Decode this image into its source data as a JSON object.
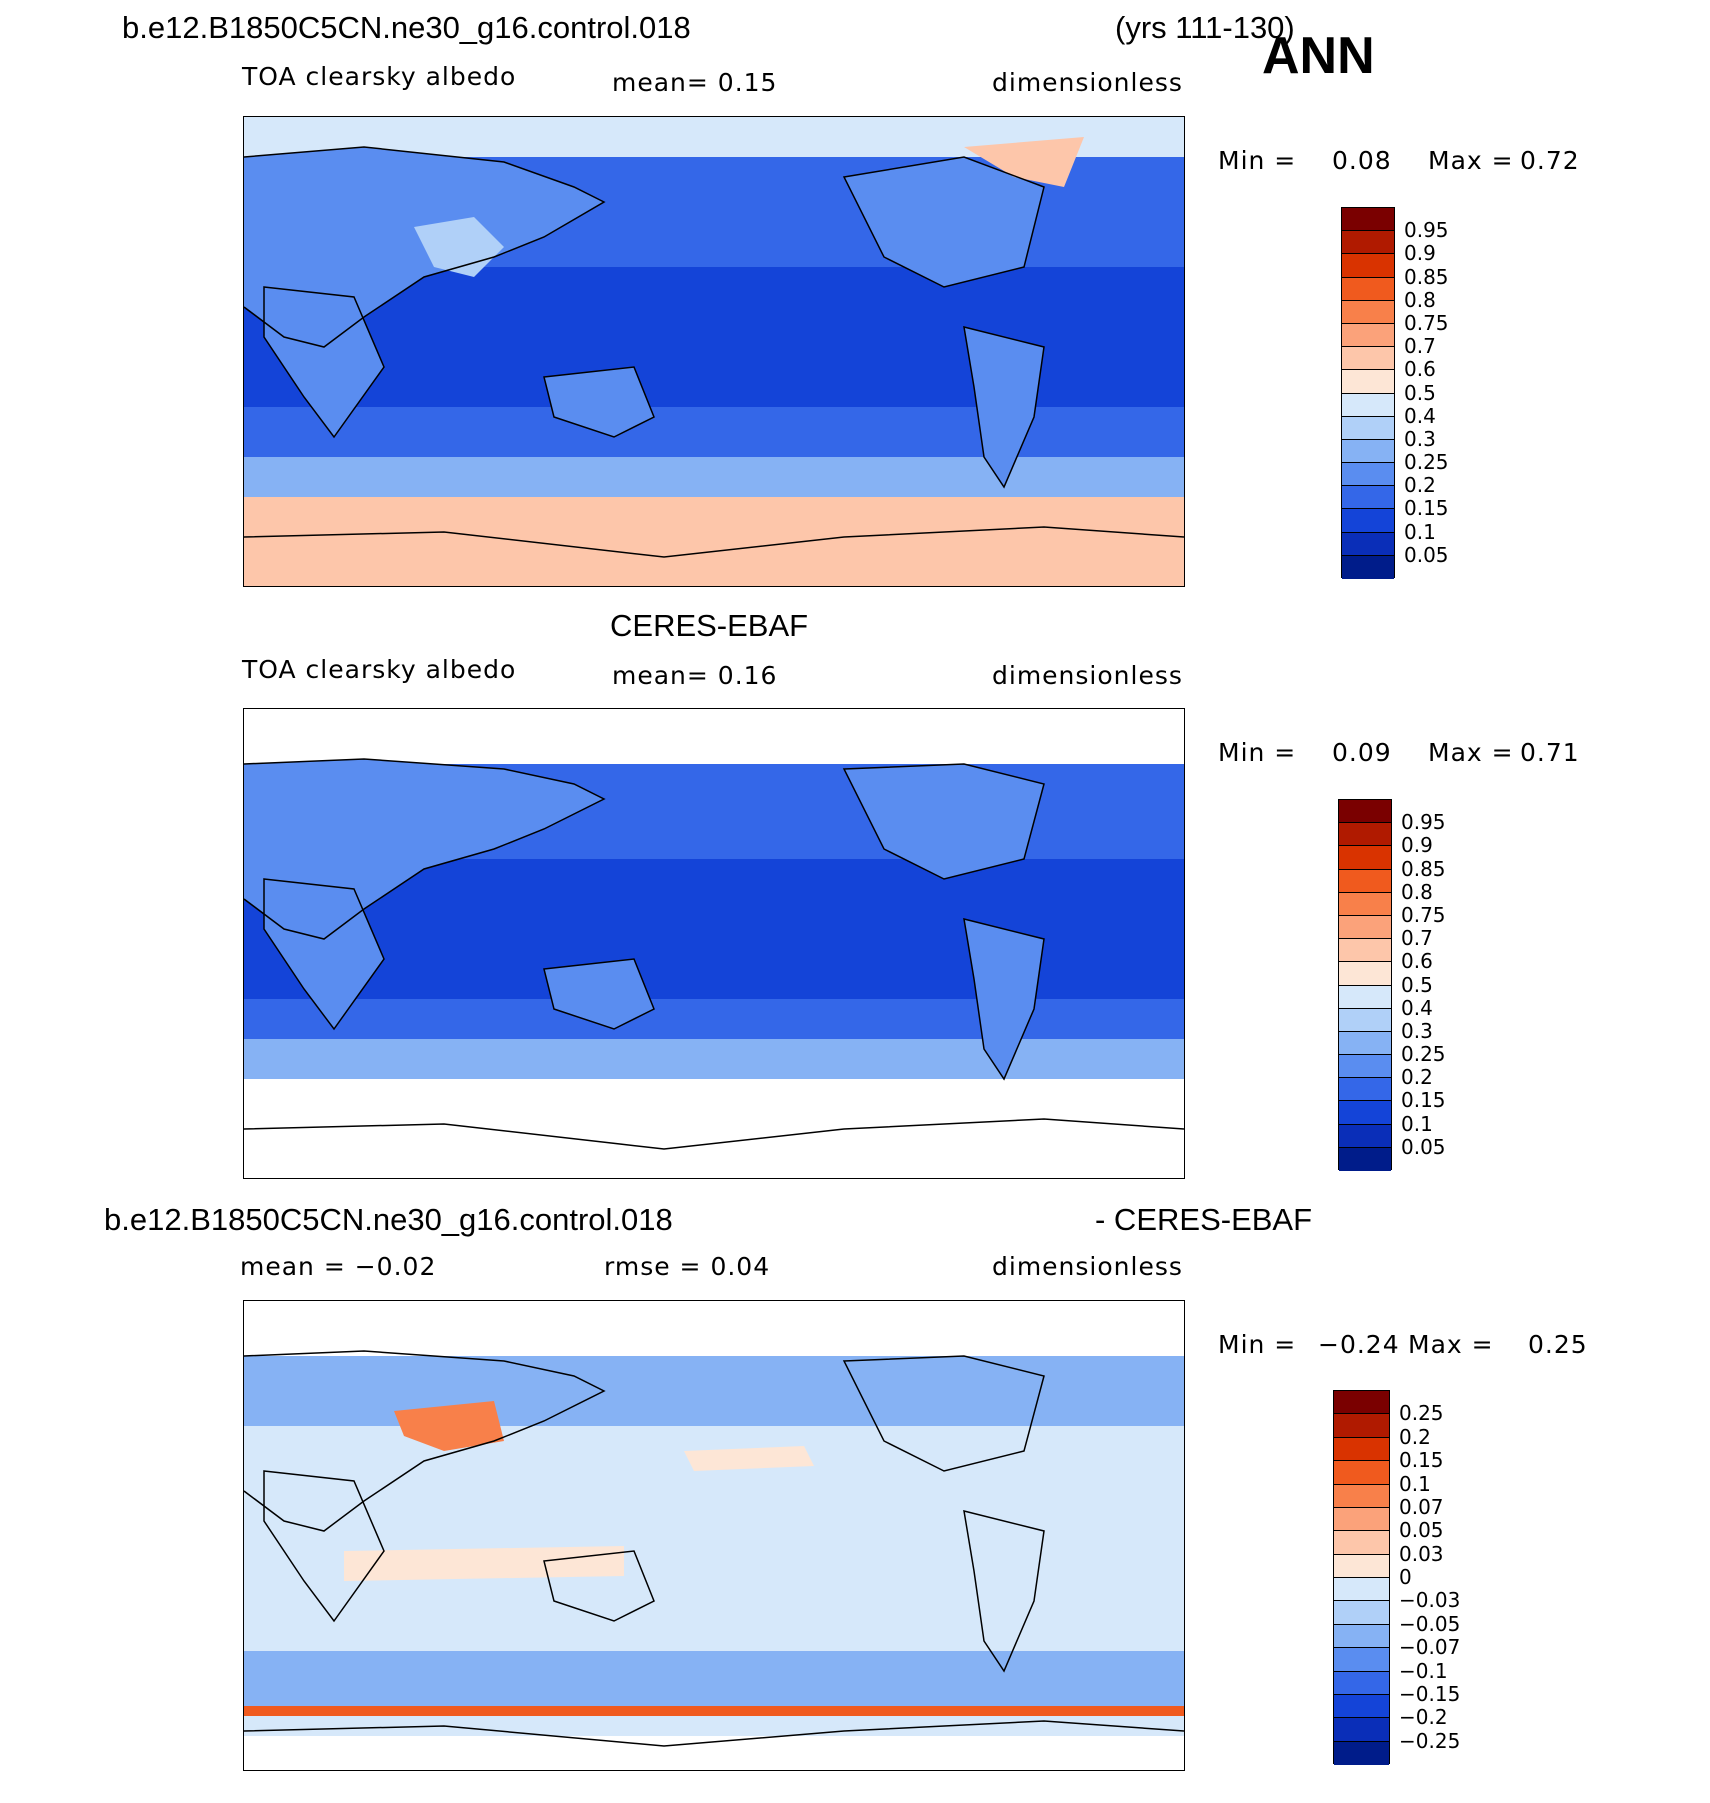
{
  "header": {
    "case_name": "b.e12.B1850C5CN.ne30_g16.control.018",
    "years": "(yrs 111-130)",
    "season": "ANN"
  },
  "panels": [
    {
      "id": "model",
      "title": "",
      "variable": "TOA clearsky albedo",
      "stat_text": "mean=    0.15",
      "units": "dimensionless",
      "min_label": "Min =",
      "min_value": "0.08",
      "max_label": "Max =",
      "max_value": "0.72",
      "colorbar_labels": [
        "0.95",
        "0.9",
        "0.85",
        "0.8",
        "0.75",
        "0.7",
        "0.6",
        "0.5",
        "0.4",
        "0.3",
        "0.25",
        "0.2",
        "0.15",
        "0.1",
        "0.05"
      ],
      "colorbar_colors": [
        "#7a0000",
        "#b01a00",
        "#d93300",
        "#f05a1e",
        "#f8804a",
        "#fba27a",
        "#fdc6aa",
        "#fde6d6",
        "#d6e8fa",
        "#b0d0f8",
        "#86b2f4",
        "#5a8df0",
        "#3467e8",
        "#1444d8",
        "#0a2eb8",
        "#001c8a"
      ]
    },
    {
      "id": "obs",
      "title": "CERES-EBAF",
      "variable": "TOA clearsky albedo",
      "stat_text": "mean=    0.16",
      "units": "dimensionless",
      "min_label": "Min =",
      "min_value": "0.09",
      "max_label": "Max =",
      "max_value": "0.71",
      "colorbar_labels": [
        "0.95",
        "0.9",
        "0.85",
        "0.8",
        "0.75",
        "0.7",
        "0.6",
        "0.5",
        "0.4",
        "0.3",
        "0.25",
        "0.2",
        "0.15",
        "0.1",
        "0.05"
      ],
      "colorbar_colors": [
        "#7a0000",
        "#b01a00",
        "#d93300",
        "#f05a1e",
        "#f8804a",
        "#fba27a",
        "#fdc6aa",
        "#fde6d6",
        "#d6e8fa",
        "#b0d0f8",
        "#86b2f4",
        "#5a8df0",
        "#3467e8",
        "#1444d8",
        "#0a2eb8",
        "#001c8a"
      ]
    },
    {
      "id": "diff",
      "title_left": "b.e12.B1850C5CN.ne30_g16.control.018",
      "title_right": "- CERES-EBAF",
      "mean_text": "mean =   −0.02",
      "rmse_text": "rmse =    0.04",
      "units": "dimensionless",
      "min_label": "Min =",
      "min_value": "−0.24",
      "max_label": "Max =",
      "max_value": "0.25",
      "colorbar_labels": [
        "0.25",
        "0.2",
        "0.15",
        "0.1",
        "0.07",
        "0.05",
        "0.03",
        "0",
        "−0.03",
        "−0.05",
        "−0.07",
        "−0.1",
        "−0.15",
        "−0.2",
        "−0.25"
      ],
      "colorbar_colors": [
        "#7a0000",
        "#b01a00",
        "#d93300",
        "#f05a1e",
        "#f8804a",
        "#fba27a",
        "#fdc6aa",
        "#fde6d6",
        "#d6e8fa",
        "#b0d0f8",
        "#86b2f4",
        "#5a8df0",
        "#3467e8",
        "#1444d8",
        "#0a2eb8",
        "#001c8a"
      ]
    }
  ],
  "map_colors": {
    "deep_ocean": "#1444d8",
    "ocean": "#3467e8",
    "land": "#5a8df0",
    "light": "#b0d0f8",
    "ice": "#fdc6aa",
    "polar_white": "#ffffff",
    "diff_bg": "#d6e8fa",
    "diff_pos": "#fde6d6",
    "diff_neg": "#86b2f4",
    "diff_strong_pos": "#f05a1e"
  }
}
